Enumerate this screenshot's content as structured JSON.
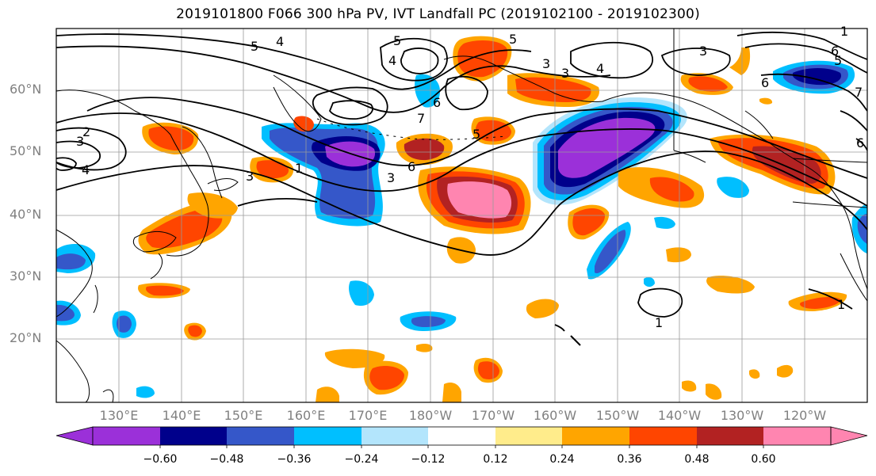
{
  "title": "2019101800 F066 300 hPa PV, IVT Landfall PC (2019102100 - 2019102300)",
  "lat_labels": [
    "60°N",
    "50°N",
    "40°N",
    "30°N",
    "20°N"
  ],
  "lon_labels": [
    "130°E",
    "140°E",
    "150°E",
    "160°E",
    "170°E",
    "180°W",
    "170°W",
    "160°W",
    "150°W",
    "140°W",
    "130°W",
    "120°W"
  ],
  "colorbar": {
    "ticks": [
      "−0.60",
      "−0.48",
      "−0.36",
      "−0.24",
      "−0.12",
      "0.12",
      "0.24",
      "0.36",
      "0.48",
      "0.60"
    ],
    "colors": [
      "#9b30d9",
      "#00008b",
      "#3557c9",
      "#00bfff",
      "#b3e5fc",
      "#ffffff",
      "#ffec8b",
      "#ffa500",
      "#ff4500",
      "#b22222",
      "#ff85b0"
    ]
  },
  "contour_labels": [
    "5",
    "4",
    "5",
    "4",
    "3",
    "4",
    "3",
    "2",
    "3",
    "4",
    "3",
    "1",
    "5",
    "6",
    "3",
    "6",
    "7",
    "5",
    "6",
    "5",
    "3",
    "6",
    "1",
    "1",
    "7",
    "6",
    "1"
  ]
}
